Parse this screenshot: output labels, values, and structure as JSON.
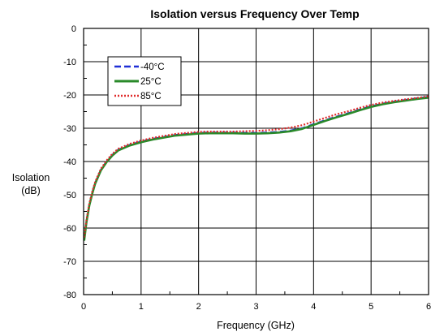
{
  "chart_data": {
    "type": "line",
    "title": "Isolation versus Frequency Over Temp",
    "xlabel": "Frequency (GHz)",
    "ylabel_line1": "Isolation",
    "ylabel_line2": "(dB)",
    "xlim": [
      0,
      6
    ],
    "ylim": [
      -80,
      0
    ],
    "xticks": [
      0,
      1,
      2,
      3,
      4,
      5,
      6
    ],
    "yticks": [
      0,
      -10,
      -20,
      -30,
      -40,
      -50,
      -60,
      -70,
      -80
    ],
    "grid": true,
    "legend_position": "top-left",
    "x": [
      0.01,
      0.05,
      0.1,
      0.15,
      0.2,
      0.3,
      0.4,
      0.5,
      0.6,
      0.8,
      1.0,
      1.2,
      1.4,
      1.6,
      1.8,
      2.0,
      2.2,
      2.4,
      2.6,
      2.8,
      3.0,
      3.2,
      3.4,
      3.6,
      3.8,
      4.0,
      4.2,
      4.4,
      4.6,
      4.8,
      5.0,
      5.2,
      5.4,
      5.6,
      5.8,
      6.0
    ],
    "series": [
      {
        "name": "-40°C",
        "color": "#1f2fd6",
        "dash": "8,4",
        "values": [
          -63.5,
          -58,
          -53,
          -49.5,
          -46.5,
          -42.5,
          -40,
          -38,
          -36.5,
          -35,
          -34,
          -33.2,
          -32.6,
          -32,
          -31.7,
          -31.4,
          -31.3,
          -31.3,
          -31.3,
          -31.4,
          -31.4,
          -31.3,
          -31.1,
          -30.7,
          -30,
          -28.8,
          -27.6,
          -26.5,
          -25.5,
          -24.4,
          -23.4,
          -22.6,
          -22,
          -21.5,
          -21,
          -20.6
        ]
      },
      {
        "name": "25°C",
        "color": "#2a8a2a",
        "dash": "",
        "values": [
          -63.8,
          -58.2,
          -53.2,
          -49.7,
          -46.7,
          -42.7,
          -40.2,
          -38.2,
          -36.7,
          -35.2,
          -34.2,
          -33.4,
          -32.8,
          -32.2,
          -31.9,
          -31.6,
          -31.5,
          -31.5,
          -31.5,
          -31.6,
          -31.6,
          -31.5,
          -31.3,
          -30.9,
          -30.2,
          -29,
          -27.8,
          -26.7,
          -25.7,
          -24.6,
          -23.6,
          -22.8,
          -22.2,
          -21.7,
          -21.2,
          -20.8
        ]
      },
      {
        "name": "85°C",
        "color": "#e02a2a",
        "dash": "2,2",
        "values": [
          -62.8,
          -57.5,
          -52.6,
          -49.1,
          -46.2,
          -42.2,
          -39.7,
          -37.7,
          -36.2,
          -34.7,
          -33.7,
          -32.9,
          -32.3,
          -31.7,
          -31.4,
          -31.1,
          -31,
          -31,
          -31,
          -30.9,
          -30.8,
          -30.6,
          -30.3,
          -29.8,
          -29.1,
          -28,
          -26.9,
          -25.8,
          -24.9,
          -23.9,
          -23,
          -22.3,
          -21.8,
          -21.3,
          -20.9,
          -20.4
        ]
      }
    ]
  }
}
